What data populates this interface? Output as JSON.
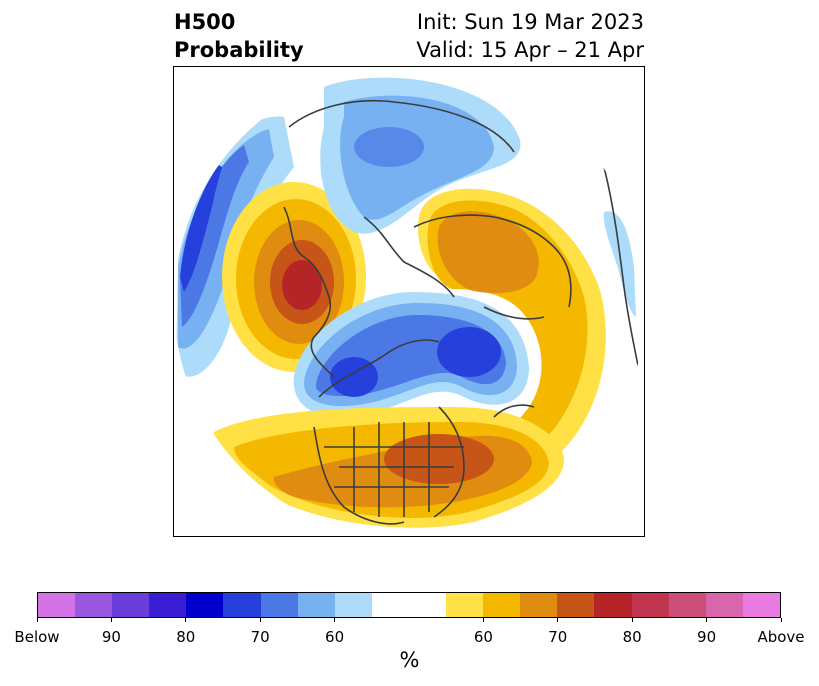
{
  "title": {
    "line1": "H500",
    "line2": "Probability",
    "init": "Init: Sun 19 Mar 2023",
    "valid": "Valid: 15 Apr – 21 Apr"
  },
  "colorbar": {
    "unit": "%",
    "colors": [
      "#d473e8",
      "#9a57e0",
      "#6b3ddb",
      "#3a1ed4",
      "#0000cc",
      "#2540db",
      "#4c78e6",
      "#77b1f2",
      "#acdcfa",
      "#ffffff",
      "#ffffff",
      "#ffe145",
      "#f5b800",
      "#e08c10",
      "#c75518",
      "#b52528",
      "#c2354f",
      "#cc4f7b",
      "#d966ac",
      "#e87ae0"
    ],
    "ticks": [
      "Below",
      "90",
      "80",
      "70",
      "60",
      "60",
      "70",
      "80",
      "90",
      "Above"
    ]
  },
  "map": {
    "projection": "north-polar-stereographic",
    "field": "H500 probability anomaly",
    "colors": {
      "blue_light": "#acdcfa",
      "blue_mid": "#77b1f2",
      "blue_med": "#4c78e6",
      "blue_dark": "#2540db",
      "yellow": "#ffe145",
      "gold": "#f5b800",
      "orange": "#e08c10",
      "darkorange": "#c75518",
      "red": "#b52528",
      "coast": "#3c3c3c"
    }
  }
}
